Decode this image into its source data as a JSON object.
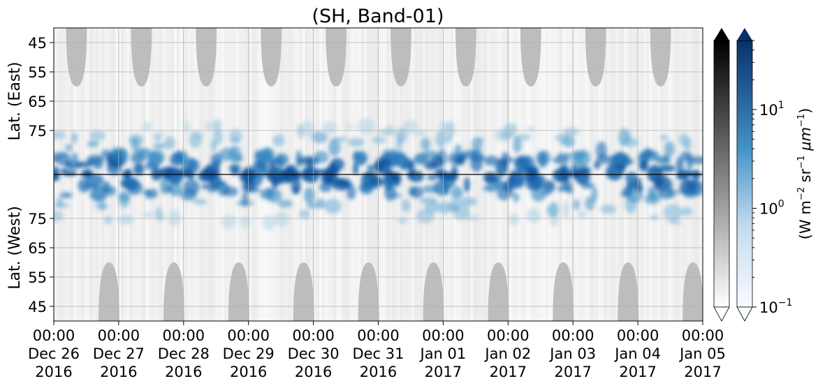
{
  "chart_data": {
    "type": "heatmap",
    "title": "(SH, Band-01)",
    "ylabel_top": "Lat. (East)",
    "ylabel_bottom": "Lat. (West)",
    "yticks_top": [
      "45",
      "55",
      "65",
      "75"
    ],
    "yticks_bottom": [
      "75",
      "65",
      "55",
      "45"
    ],
    "x_ticks": [
      {
        "time": "00:00",
        "date": "Dec 26",
        "year": "2016"
      },
      {
        "time": "00:00",
        "date": "Dec 27",
        "year": "2016"
      },
      {
        "time": "00:00",
        "date": "Dec 28",
        "year": "2016"
      },
      {
        "time": "00:00",
        "date": "Dec 29",
        "year": "2016"
      },
      {
        "time": "00:00",
        "date": "Dec 30",
        "year": "2016"
      },
      {
        "time": "00:00",
        "date": "Dec 31",
        "year": "2016"
      },
      {
        "time": "00:00",
        "date": "Jan 01",
        "year": "2017"
      },
      {
        "time": "00:00",
        "date": "Jan 02",
        "year": "2017"
      },
      {
        "time": "00:00",
        "date": "Jan 03",
        "year": "2017"
      },
      {
        "time": "00:00",
        "date": "Jan 04",
        "year": "2017"
      },
      {
        "time": "00:00",
        "date": "Jan 05",
        "year": "2017"
      }
    ],
    "xlim": [
      "2016-12-26 00:00",
      "2017-01-05 00:00"
    ],
    "ylim_top": [
      40,
      90
    ],
    "ylim_bottom": [
      90,
      40
    ],
    "grid": true,
    "colorbar": {
      "label": "(W m$^{-2}$ sr$^{-1}$ $\\mu$m$^{-1}$)",
      "label_main": "(W m",
      "label_sup1": "−2",
      "label_mid": " sr",
      "label_sup2": "−1",
      "label_mu": " μm",
      "label_sup3": "−1",
      "label_end": ")",
      "scale": "log",
      "range": [
        0.1,
        50
      ],
      "ticks": [
        {
          "base": "10",
          "exp": "1",
          "value": 10
        },
        {
          "base": "10",
          "exp": "0",
          "value": 1
        },
        {
          "base": "10",
          "exp": "−1",
          "value": 0.1
        }
      ],
      "cmaps": [
        "Greys",
        "Blues"
      ],
      "extend": "both"
    },
    "series": [
      {
        "kind": "background-radiance",
        "colormap": "Greys",
        "note_values": [
          0.1,
          1.0
        ]
      },
      {
        "kind": "aurora-radiance",
        "colormap": "Blues",
        "note_values": [
          1.0,
          10.0
        ]
      }
    ],
    "diurnal_gaps_top_days": [
      0.35,
      1.35,
      2.35,
      3.35,
      4.35,
      5.35,
      6.35,
      7.35,
      8.35,
      9.35
    ],
    "diurnal_gaps_bottom_days": [
      0.85,
      1.85,
      2.85,
      3.85,
      4.85,
      5.85,
      6.85,
      7.85,
      8.85,
      9.85
    ]
  },
  "colors": {
    "axis": "#000000",
    "grid": "#b0b0b0",
    "gap": "#bdbdbd",
    "aurora_dark": "#08306b",
    "aurora_mid": "#2f7fc1",
    "aurora_light": "#c6dbef"
  }
}
